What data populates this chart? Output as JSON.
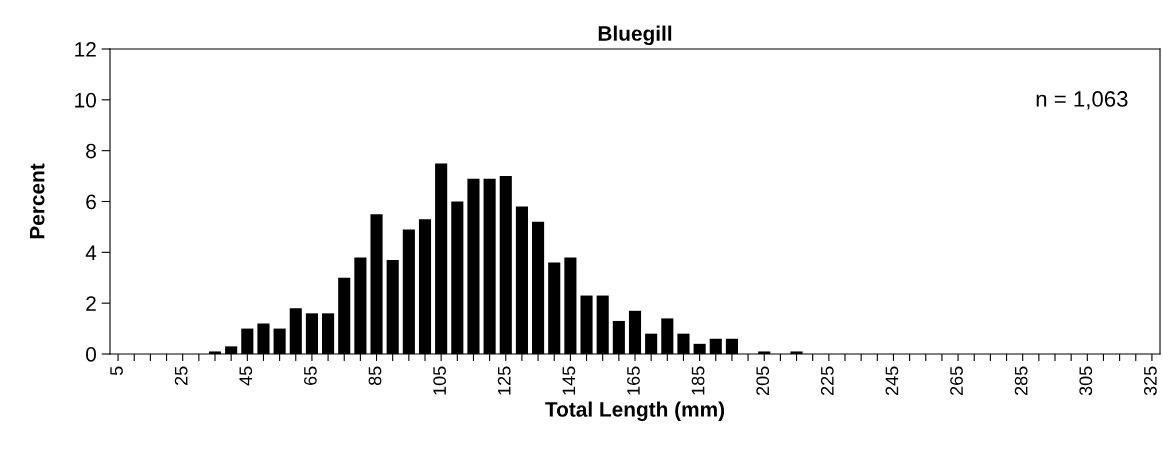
{
  "chart_data": {
    "type": "bar",
    "title": "Bluegill",
    "xlabel": "Total Length (mm)",
    "ylabel": "Percent",
    "categories": [
      "5",
      null,
      null,
      null,
      "25",
      null,
      null,
      null,
      "45",
      null,
      null,
      null,
      "65",
      null,
      null,
      null,
      "85",
      null,
      null,
      null,
      "105",
      null,
      null,
      null,
      "125",
      null,
      null,
      null,
      "145",
      null,
      null,
      null,
      "165",
      null,
      null,
      null,
      "185",
      null,
      null,
      null,
      "205",
      null,
      null,
      null,
      "225",
      null,
      null,
      null,
      "245",
      null,
      null,
      null,
      "265",
      null,
      null,
      null,
      "285",
      null,
      null,
      null,
      "305",
      null,
      null,
      null,
      "325"
    ],
    "values": [
      0,
      0,
      0,
      0,
      0,
      0,
      0.1,
      0.3,
      1.0,
      1.2,
      1.0,
      1.8,
      1.6,
      1.6,
      3.0,
      3.8,
      5.5,
      3.7,
      4.9,
      5.3,
      7.5,
      6.0,
      6.9,
      6.9,
      7.0,
      5.8,
      5.2,
      3.6,
      3.8,
      2.3,
      2.3,
      1.3,
      1.7,
      0.8,
      1.4,
      0.8,
      0.4,
      0.6,
      0.6,
      0,
      0.1,
      0,
      0.1,
      0,
      0,
      0,
      0,
      0,
      0,
      0,
      0,
      0,
      0,
      0,
      0,
      0,
      0,
      0,
      0,
      0,
      0,
      0,
      0,
      0,
      0
    ],
    "color": "#000000",
    "ylim": [
      0,
      12
    ],
    "yticks": [
      0,
      2,
      4,
      6,
      8,
      10,
      12
    ],
    "grid": false,
    "legend": false,
    "annotations": [
      "n = 1,063"
    ]
  }
}
